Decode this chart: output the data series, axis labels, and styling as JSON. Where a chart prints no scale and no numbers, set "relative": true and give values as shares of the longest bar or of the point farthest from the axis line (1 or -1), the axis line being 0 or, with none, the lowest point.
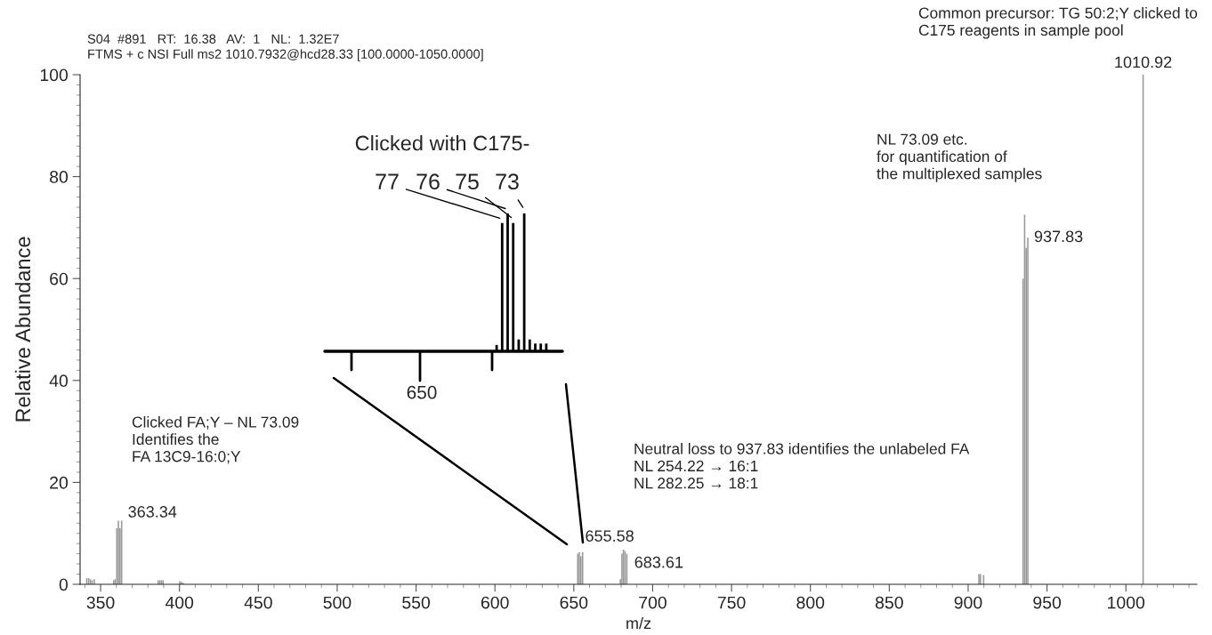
{
  "chart_data": [
    {
      "type": "bar",
      "title": "S04  #891   RT:  16.38   AV:  1   NL:  1.32E7",
      "subtitle": "FTMS + c NSI Full ms2 1010.7932@hcd28.33 [100.0000-1050.0000]",
      "xlabel": "m/z",
      "ylabel": "Relative Abundance",
      "series": [
        {
          "color": "#9a9a9a",
          "x": [
            341.2,
            342.4,
            343.5,
            344.6,
            346.0,
            358.3,
            359.2,
            360.3,
            361.3,
            362.3,
            363.34,
            364.4,
            374.5,
            386.5,
            387.6,
            388.6,
            389.6,
            390.6,
            400.2,
            401.3,
            402.4,
            651.5,
            652.5,
            653.5,
            654.5,
            655.58,
            679.5,
            680.5,
            681.5,
            682.5,
            683.61,
            906.8,
            907.8,
            909.8,
            934.8,
            935.8,
            936.8,
            937.83,
            1010.92
          ],
          "values": [
            1.2,
            1.2,
            1.0,
            0.8,
            1.0,
            0.8,
            1.0,
            11.0,
            12.5,
            11.0,
            12.5,
            null,
            null,
            0.8,
            0.8,
            0.8,
            0.8,
            null,
            0.6,
            0.5,
            0.3,
            null,
            6.0,
            6.3,
            5.5,
            6.3,
            1.0,
            6.0,
            6.8,
            6.5,
            6.0,
            2.0,
            2.0,
            1.8,
            60.0,
            72.5,
            66.0,
            68.0,
            100.0
          ]
        }
      ],
      "xlim": [
        337,
        1045
      ],
      "xticks": [
        350,
        400,
        450,
        500,
        550,
        600,
        650,
        700,
        750,
        800,
        850,
        900,
        950,
        1000
      ],
      "ylim": [
        0,
        100
      ],
      "yticks": [
        0,
        20,
        40,
        60,
        80,
        100
      ],
      "grid": false,
      "legend": false,
      "annotations": [
        {
          "text": "1010.92",
          "x": 1010.92,
          "y": 100
        },
        {
          "text": "937.83",
          "x": 937.83,
          "y": 68
        },
        {
          "text": "363.34",
          "x": 363.34,
          "y": 12.5
        },
        {
          "text": "655.58",
          "x": 655.58,
          "y": 6.3
        },
        {
          "text": "683.61",
          "x": 683.61,
          "y": 6.0
        },
        "Common precursor: TG 50:2;Y clicked to\nC175 reagents in sample pool",
        "NL 73.09 etc.\nfor quantification of\nthe multiplexed samples",
        "Clicked FA;Y – NL 73.09\nIdentifies the\nFA 13C9-16:0;Y",
        "Neutral loss to 937.83 identifies the unlabeled FA\nNL 254.22 → 16:1\nNL 282.25 → 18:1"
      ]
    },
    {
      "type": "bar",
      "title": "Clicked with C175-",
      "relative": true,
      "categories": [
        null,
        null,
        null,
        null,
        null,
        null,
        null,
        null,
        null,
        null
      ],
      "series": [
        {
          "color": "#000000",
          "values": [
            0.04,
            0.93,
            1.0,
            0.93,
            0.08,
            1.0,
            0.08,
            0.05,
            0.05,
            0.05
          ]
        }
      ],
      "annotations": [
        "77",
        "76",
        "75",
        "73",
        "650"
      ]
    }
  ]
}
